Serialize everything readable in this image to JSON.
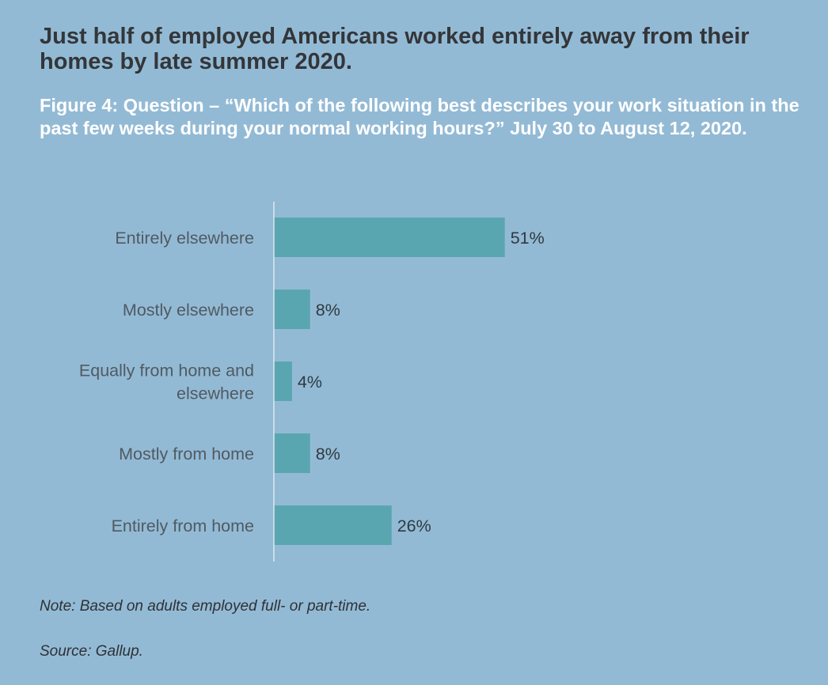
{
  "title": "Just half of employed Americans worked entirely away from their homes by late summer 2020.",
  "subtitle": "Figure 4: Question – “Which of the following best describes your work situation in the past few weeks during your normal working hours?” July 30 to August 12, 2020.",
  "note": "Note: Based on adults employed full- or part-time.",
  "source": "Source: Gallup.",
  "colors": {
    "background": "#93bad5",
    "bar": "#5aa6b0",
    "axis": "#e8eef3",
    "label_text": "#505a62",
    "value_text": "#2f3a40"
  },
  "chart_data": {
    "type": "bar",
    "orientation": "horizontal",
    "categories": [
      [
        "Entirely elsewhere"
      ],
      [
        "Mostly elsewhere"
      ],
      [
        "Equally from home and",
        "elsewhere"
      ],
      [
        "Mostly from home"
      ],
      [
        "Entirely from home"
      ]
    ],
    "values": [
      51,
      8,
      4,
      8,
      26
    ],
    "value_labels": [
      "51%",
      "8%",
      "4%",
      "8%",
      "26%"
    ],
    "xlim": [
      0,
      100
    ],
    "grid": false,
    "legend": "none"
  }
}
